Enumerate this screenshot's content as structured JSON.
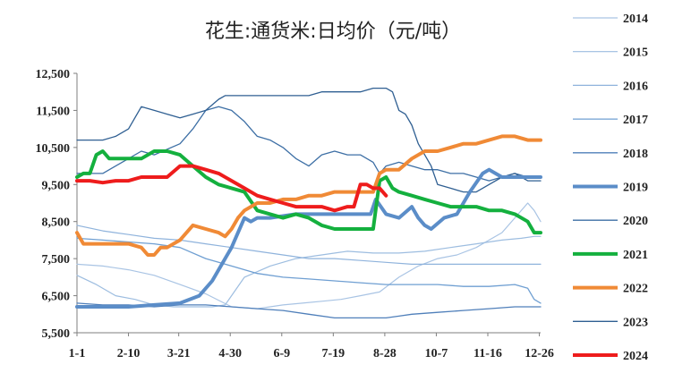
{
  "chart_data": {
    "type": "line",
    "title": "花生:通货米:日均价（元/吨）",
    "xlabel": "",
    "ylabel": "",
    "ylim": [
      5500,
      12500
    ],
    "yticks": [
      "5,500",
      "6,500",
      "7,500",
      "8,500",
      "9,500",
      "10,500",
      "11,500",
      "12,500"
    ],
    "ytick_values": [
      5500,
      6500,
      7500,
      8500,
      9500,
      10500,
      11500,
      12500
    ],
    "x_range": [
      0,
      360
    ],
    "xticks": [
      "1-1",
      "2-10",
      "3-21",
      "4-30",
      "6-9",
      "7-19",
      "8-28",
      "10-7",
      "11-16",
      "12-26"
    ],
    "xtick_days": [
      0,
      40,
      79,
      119,
      159,
      199,
      239,
      279,
      319,
      359
    ],
    "legend_position": "right",
    "grid": false,
    "series": [
      {
        "name": "2014",
        "color": "#a9c4e4",
        "width": 1.2,
        "x": [
          0,
          20,
          40,
          60,
          80,
          100,
          120,
          140,
          160,
          175,
          190,
          205,
          220,
          235,
          250,
          265,
          280,
          295,
          310,
          320,
          330,
          340,
          350,
          355,
          360
        ],
        "values": [
          7350,
          7300,
          7200,
          7050,
          6800,
          6550,
          6200,
          6150,
          6250,
          6300,
          6350,
          6400,
          6500,
          6600,
          7000,
          7300,
          7500,
          7600,
          7800,
          8000,
          8200,
          8600,
          9000,
          8800,
          8500
        ]
      },
      {
        "name": "2015",
        "color": "#9dbde0",
        "width": 1.2,
        "x": [
          0,
          15,
          30,
          45,
          60,
          75,
          90,
          105,
          115,
          130,
          150,
          170,
          190,
          210,
          230,
          250,
          270,
          290,
          310,
          330,
          345,
          355,
          360
        ],
        "values": [
          7050,
          6800,
          6500,
          6400,
          6250,
          6200,
          6200,
          6200,
          6250,
          7000,
          7300,
          7500,
          7600,
          7700,
          7650,
          7650,
          7700,
          7800,
          7900,
          8000,
          8050,
          8100,
          8100
        ]
      },
      {
        "name": "2016",
        "color": "#8fb3dc",
        "width": 1.2,
        "x": [
          0,
          20,
          40,
          60,
          80,
          100,
          120,
          140,
          160,
          180,
          200,
          220,
          240,
          260,
          280,
          300,
          320,
          340,
          360
        ],
        "values": [
          8400,
          8250,
          8150,
          8050,
          8000,
          7900,
          7800,
          7700,
          7600,
          7500,
          7500,
          7450,
          7400,
          7350,
          7350,
          7350,
          7350,
          7350,
          7350
        ]
      },
      {
        "name": "2017",
        "color": "#6f9fd2",
        "width": 1.3,
        "x": [
          0,
          20,
          40,
          60,
          80,
          100,
          120,
          140,
          160,
          180,
          200,
          220,
          240,
          260,
          280,
          300,
          320,
          340,
          350,
          355,
          360
        ],
        "values": [
          8050,
          8000,
          7950,
          7900,
          7800,
          7500,
          7300,
          7100,
          7000,
          6950,
          6900,
          6850,
          6800,
          6800,
          6800,
          6750,
          6750,
          6800,
          6700,
          6400,
          6300
        ]
      },
      {
        "name": "2018",
        "color": "#4f7fba",
        "width": 1.3,
        "x": [
          0,
          20,
          40,
          60,
          80,
          100,
          120,
          140,
          160,
          180,
          200,
          220,
          240,
          250,
          260,
          280,
          300,
          320,
          340,
          360
        ],
        "values": [
          6300,
          6250,
          6250,
          6200,
          6250,
          6250,
          6200,
          6150,
          6100,
          6000,
          5900,
          5900,
          5900,
          5950,
          6000,
          6050,
          6100,
          6150,
          6200,
          6200
        ]
      },
      {
        "name": "2019",
        "color": "#5b8dc8",
        "width": 4,
        "x": [
          0,
          20,
          40,
          60,
          80,
          95,
          105,
          115,
          120,
          125,
          130,
          135,
          140,
          150,
          160,
          170,
          180,
          190,
          200,
          210,
          220,
          228,
          232,
          240,
          250,
          260,
          265,
          270,
          275,
          285,
          295,
          305,
          315,
          320,
          325,
          330,
          340,
          350,
          360
        ],
        "values": [
          6200,
          6200,
          6200,
          6250,
          6300,
          6500,
          6900,
          7500,
          7800,
          8200,
          8600,
          8500,
          8600,
          8600,
          8650,
          8700,
          8700,
          8700,
          8700,
          8700,
          8700,
          8700,
          9100,
          8700,
          8600,
          8900,
          8600,
          8400,
          8300,
          8600,
          8700,
          9300,
          9800,
          9900,
          9800,
          9700,
          9700,
          9700,
          9700
        ]
      },
      {
        "name": "2020",
        "color": "#3d6fa5",
        "width": 1.3,
        "x": [
          0,
          20,
          30,
          40,
          50,
          60,
          80,
          90,
          100,
          110,
          120,
          130,
          140,
          150,
          160,
          170,
          180,
          190,
          200,
          210,
          220,
          230,
          235,
          240,
          250,
          260,
          270,
          280,
          290,
          300,
          310,
          320,
          330,
          340,
          350,
          360
        ],
        "values": [
          9800,
          9800,
          10000,
          10200,
          10400,
          10300,
          10600,
          11000,
          11500,
          11600,
          11500,
          11200,
          10800,
          10700,
          10500,
          10200,
          10000,
          10300,
          10400,
          10300,
          10300,
          10100,
          9800,
          10000,
          10100,
          10000,
          9900,
          9900,
          9800,
          9800,
          9700,
          9600,
          9700,
          9800,
          9700,
          9700
        ]
      },
      {
        "name": "2021",
        "color": "#14b03e",
        "width": 4,
        "x": [
          0,
          5,
          10,
          15,
          20,
          25,
          30,
          40,
          50,
          60,
          70,
          80,
          90,
          100,
          110,
          120,
          130,
          140,
          150,
          160,
          170,
          180,
          190,
          200,
          210,
          220,
          230,
          235,
          240,
          245,
          250,
          260,
          270,
          280,
          290,
          300,
          310,
          320,
          330,
          340,
          350,
          355,
          360
        ],
        "values": [
          9700,
          9800,
          9800,
          10300,
          10400,
          10200,
          10200,
          10200,
          10200,
          10400,
          10400,
          10300,
          10000,
          9700,
          9500,
          9400,
          9300,
          8800,
          8700,
          8600,
          8700,
          8600,
          8400,
          8300,
          8300,
          8300,
          8300,
          9600,
          9700,
          9400,
          9300,
          9200,
          9100,
          9000,
          8900,
          8900,
          8900,
          8800,
          8800,
          8700,
          8500,
          8200,
          8200
        ]
      },
      {
        "name": "2022",
        "color": "#f08a36",
        "width": 4,
        "x": [
          0,
          5,
          20,
          40,
          50,
          55,
          60,
          65,
          70,
          80,
          90,
          100,
          110,
          115,
          120,
          125,
          130,
          140,
          150,
          160,
          170,
          180,
          190,
          200,
          210,
          220,
          230,
          235,
          240,
          250,
          260,
          270,
          280,
          290,
          300,
          310,
          320,
          330,
          340,
          350,
          360
        ],
        "values": [
          8200,
          7900,
          7900,
          7900,
          7800,
          7600,
          7600,
          7800,
          7800,
          8000,
          8400,
          8300,
          8200,
          8100,
          8300,
          8600,
          8800,
          9000,
          9000,
          9100,
          9100,
          9200,
          9200,
          9300,
          9300,
          9300,
          9300,
          9800,
          9900,
          9900,
          10200,
          10400,
          10400,
          10500,
          10600,
          10600,
          10700,
          10800,
          10800,
          10700,
          10700
        ]
      },
      {
        "name": "2023",
        "color": "#2f5f92",
        "width": 1.3,
        "x": [
          0,
          10,
          20,
          30,
          40,
          50,
          60,
          70,
          80,
          90,
          100,
          110,
          115,
          120,
          130,
          140,
          150,
          160,
          170,
          180,
          190,
          200,
          210,
          220,
          230,
          240,
          245,
          250,
          255,
          260,
          265,
          270,
          275,
          280,
          290,
          300,
          310,
          320,
          330,
          340,
          350,
          360
        ],
        "values": [
          10700,
          10700,
          10700,
          10800,
          11000,
          11600,
          11500,
          11400,
          11300,
          11400,
          11500,
          11800,
          11900,
          11900,
          11900,
          11900,
          11900,
          11900,
          11900,
          11900,
          12000,
          12000,
          12000,
          12000,
          12100,
          12100,
          12000,
          11500,
          11400,
          11100,
          10600,
          10300,
          10000,
          9500,
          9400,
          9300,
          9300,
          9500,
          9700,
          9800,
          9600,
          9600
        ]
      },
      {
        "name": "2024",
        "color": "#ee1c1c",
        "width": 4,
        "x": [
          0,
          10,
          20,
          30,
          40,
          50,
          60,
          70,
          80,
          90,
          100,
          110,
          120,
          130,
          140,
          150,
          160,
          170,
          180,
          190,
          200,
          210,
          215,
          220,
          225,
          230,
          235,
          240
        ],
        "values": [
          9600,
          9600,
          9550,
          9600,
          9600,
          9700,
          9700,
          9700,
          10000,
          10000,
          9900,
          9800,
          9600,
          9400,
          9200,
          9100,
          9000,
          8900,
          8900,
          8900,
          8800,
          8900,
          8900,
          9500,
          9500,
          9400,
          9400,
          9200
        ]
      }
    ]
  }
}
